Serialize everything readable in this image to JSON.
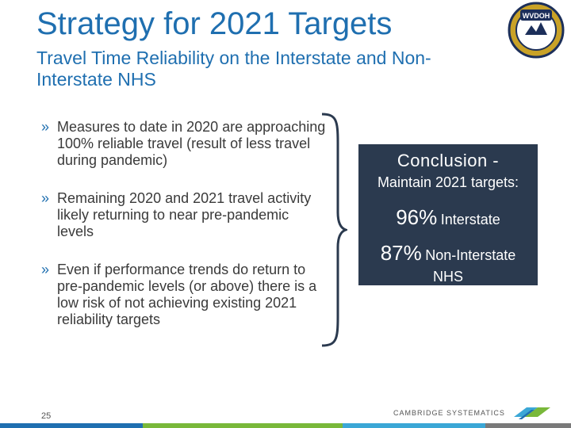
{
  "slide": {
    "title": "Strategy for 2021 Targets",
    "subtitle": "Travel Time Reliability on the Interstate and Non-Interstate NHS",
    "page_number": "25"
  },
  "logo": {
    "text": "WVDOH",
    "icon": "wvdoh-seal-icon"
  },
  "bullets": [
    {
      "mark": "»",
      "text": "Measures to date in 2020 are approaching 100% reliable travel (result of less travel during pandemic)"
    },
    {
      "mark": "»",
      "text": "Remaining 2020 and 2021 travel activity likely returning to near pre-pandemic levels"
    },
    {
      "mark": "»",
      "text": "Even if performance trends do return to pre-pandemic levels (or above) there is a low risk of not achieving existing 2021 reliability targets"
    }
  ],
  "conclusion": {
    "heading": "Conclusion -",
    "subheading": "Maintain 2021 targets:",
    "interstate_pct": "96%",
    "interstate_label": "Interstate",
    "noninterstate_pct": "87%",
    "noninterstate_label": "Non-Interstate",
    "noninterstate_suffix": "NHS"
  },
  "footer": {
    "company": "CAMBRIDGE SYSTEMATICS",
    "bar_colors": [
      "#1f6fb0",
      "#79b83a",
      "#3ba7d6",
      "#7a7a7a"
    ]
  },
  "colors": {
    "title": "#1f6fb0",
    "box_background": "#2b3a4f",
    "body_text": "#3a3a3a"
  }
}
